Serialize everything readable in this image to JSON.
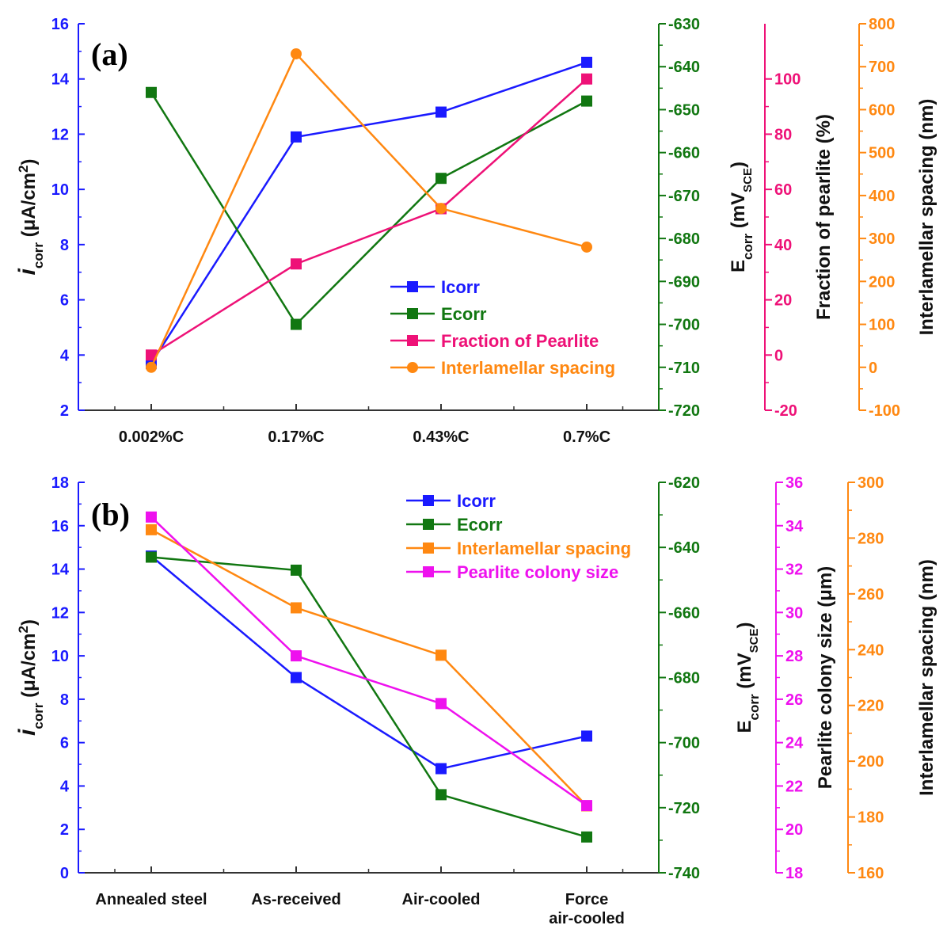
{
  "chart_data": [
    {
      "panel_label": "(a)",
      "type": "line",
      "categories": [
        "0.002%C",
        "0.17%C",
        "0.43%C",
        "0.7%C"
      ],
      "axes": [
        {
          "id": "icorr",
          "side": "left",
          "title_main": "i",
          "title_sub": "corr",
          "title_rest": " (μA/cm",
          "title_sup": "2",
          "title_end": ")",
          "range": [
            2,
            16
          ],
          "ticks": [
            2,
            4,
            6,
            8,
            10,
            12,
            14,
            16
          ],
          "color": "#1a1aff"
        },
        {
          "id": "ecorr",
          "side": "right",
          "title_main": "E",
          "title_sub": "corr",
          "title_rest": " (mV",
          "title_sub2": "SCE",
          "title_end": ")",
          "range": [
            -720,
            -630
          ],
          "ticks": [
            -720,
            -710,
            -700,
            -690,
            -680,
            -670,
            -660,
            -650,
            -640,
            -630
          ],
          "color": "#117711"
        },
        {
          "id": "fraction",
          "side": "right",
          "title_main": "Fraction of pearlite (%)",
          "range": [
            -20,
            120
          ],
          "ticks": [
            -20,
            0,
            20,
            40,
            60,
            80,
            100
          ],
          "color": "#ee1177"
        },
        {
          "id": "spacing",
          "side": "right",
          "title_main": "Interlamellar spacing (nm)",
          "range": [
            -100,
            800
          ],
          "ticks": [
            -100,
            0,
            100,
            200,
            300,
            400,
            500,
            600,
            700,
            800
          ],
          "color": "#ff8811"
        }
      ],
      "series": [
        {
          "name": "Icorr",
          "axis": "icorr",
          "marker": "square",
          "color": "#1a1aff",
          "values": [
            3.7,
            11.9,
            12.8,
            14.6
          ]
        },
        {
          "name": "Ecorr",
          "axis": "ecorr",
          "marker": "square",
          "color": "#117711",
          "values": [
            -646,
            -700,
            -666,
            -648
          ]
        },
        {
          "name": "Fraction of Pearlite",
          "axis": "fraction",
          "marker": "square",
          "color": "#ee1177",
          "values": [
            0,
            33,
            53,
            100
          ]
        },
        {
          "name": "Interlamellar spacing",
          "axis": "spacing",
          "marker": "circle",
          "color": "#ff8811",
          "values": [
            0,
            730,
            370,
            280
          ]
        }
      ]
    },
    {
      "panel_label": "(b)",
      "type": "line",
      "categories": [
        "Annealed steel",
        "As-received",
        "Air-cooled",
        "Force air-cooled"
      ],
      "category_lines": [
        [
          "Annealed steel"
        ],
        [
          "As-received"
        ],
        [
          "Air-cooled"
        ],
        [
          "Force",
          "air-cooled"
        ]
      ],
      "axes": [
        {
          "id": "icorr",
          "side": "left",
          "title_main": "i",
          "title_sub": "corr",
          "title_rest": " (μA/cm",
          "title_sup": "2",
          "title_end": ")",
          "range": [
            0,
            18
          ],
          "ticks": [
            0,
            2,
            4,
            6,
            8,
            10,
            12,
            14,
            16,
            18
          ],
          "color": "#1a1aff"
        },
        {
          "id": "ecorr",
          "side": "right",
          "title_main": "E",
          "title_sub": "corr",
          "title_rest": " (mV",
          "title_sub2": "SCE",
          "title_end": ")",
          "range": [
            -740,
            -620
          ],
          "ticks": [
            -740,
            -720,
            -700,
            -680,
            -660,
            -640,
            -620
          ],
          "color": "#117711"
        },
        {
          "id": "colony",
          "side": "right",
          "title_main": "Pearlite colony size (μm)",
          "range": [
            18,
            36
          ],
          "ticks": [
            18,
            20,
            22,
            24,
            26,
            28,
            30,
            32,
            34,
            36
          ],
          "color": "#ee11ee"
        },
        {
          "id": "spacing",
          "side": "right",
          "title_main": "Interlamellar spacing (nm)",
          "range": [
            160,
            300
          ],
          "ticks": [
            160,
            180,
            200,
            220,
            240,
            260,
            280,
            300
          ],
          "color": "#ff8811"
        }
      ],
      "series": [
        {
          "name": "Icorr",
          "axis": "icorr",
          "marker": "square",
          "color": "#1a1aff",
          "values": [
            14.6,
            9.0,
            4.8,
            6.3
          ]
        },
        {
          "name": "Ecorr",
          "axis": "ecorr",
          "marker": "square",
          "color": "#117711",
          "values": [
            -643,
            -647,
            -716,
            -729
          ]
        },
        {
          "name": "Interlamellar spacing",
          "axis": "spacing",
          "marker": "square",
          "color": "#ff8811",
          "values": [
            283,
            255,
            238,
            184
          ]
        },
        {
          "name": "Pearlite colony size",
          "axis": "colony",
          "marker": "square",
          "color": "#ee11ee",
          "values": [
            34.4,
            28.0,
            25.8,
            21.1
          ]
        }
      ]
    }
  ]
}
